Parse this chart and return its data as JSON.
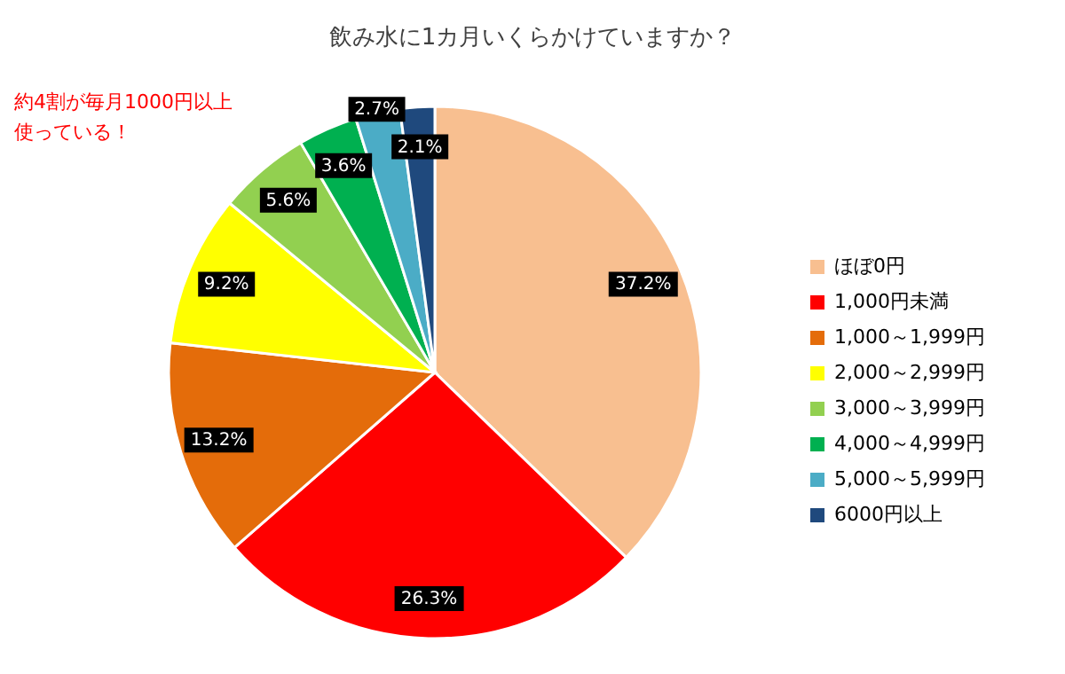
{
  "chart_data": {
    "type": "pie",
    "title": "飲み水に1カ月いくらかけていますか？",
    "categories": [
      "ほぼ0円",
      "1,000円未満",
      "1,000～1,999円",
      "2,000～2,999円",
      "3,000～3,999円",
      "4,000～4,999円",
      "5,000～5,999円",
      "6000円以上"
    ],
    "values": [
      37.2,
      26.3,
      13.2,
      9.2,
      5.6,
      3.6,
      2.7,
      2.1
    ],
    "colors": [
      "#f8bf90",
      "#ff0000",
      "#e46c0a",
      "#ffff00",
      "#92d050",
      "#00b050",
      "#4bacc6",
      "#1f497d"
    ],
    "value_labels": [
      "37.2%",
      "26.3%",
      "13.2%",
      "9.2%",
      "5.6%",
      "3.6%",
      "2.7%",
      "2.1%"
    ],
    "annotations": [
      "約4割が毎月1000円以上",
      "使っている！"
    ],
    "legend": "right"
  }
}
